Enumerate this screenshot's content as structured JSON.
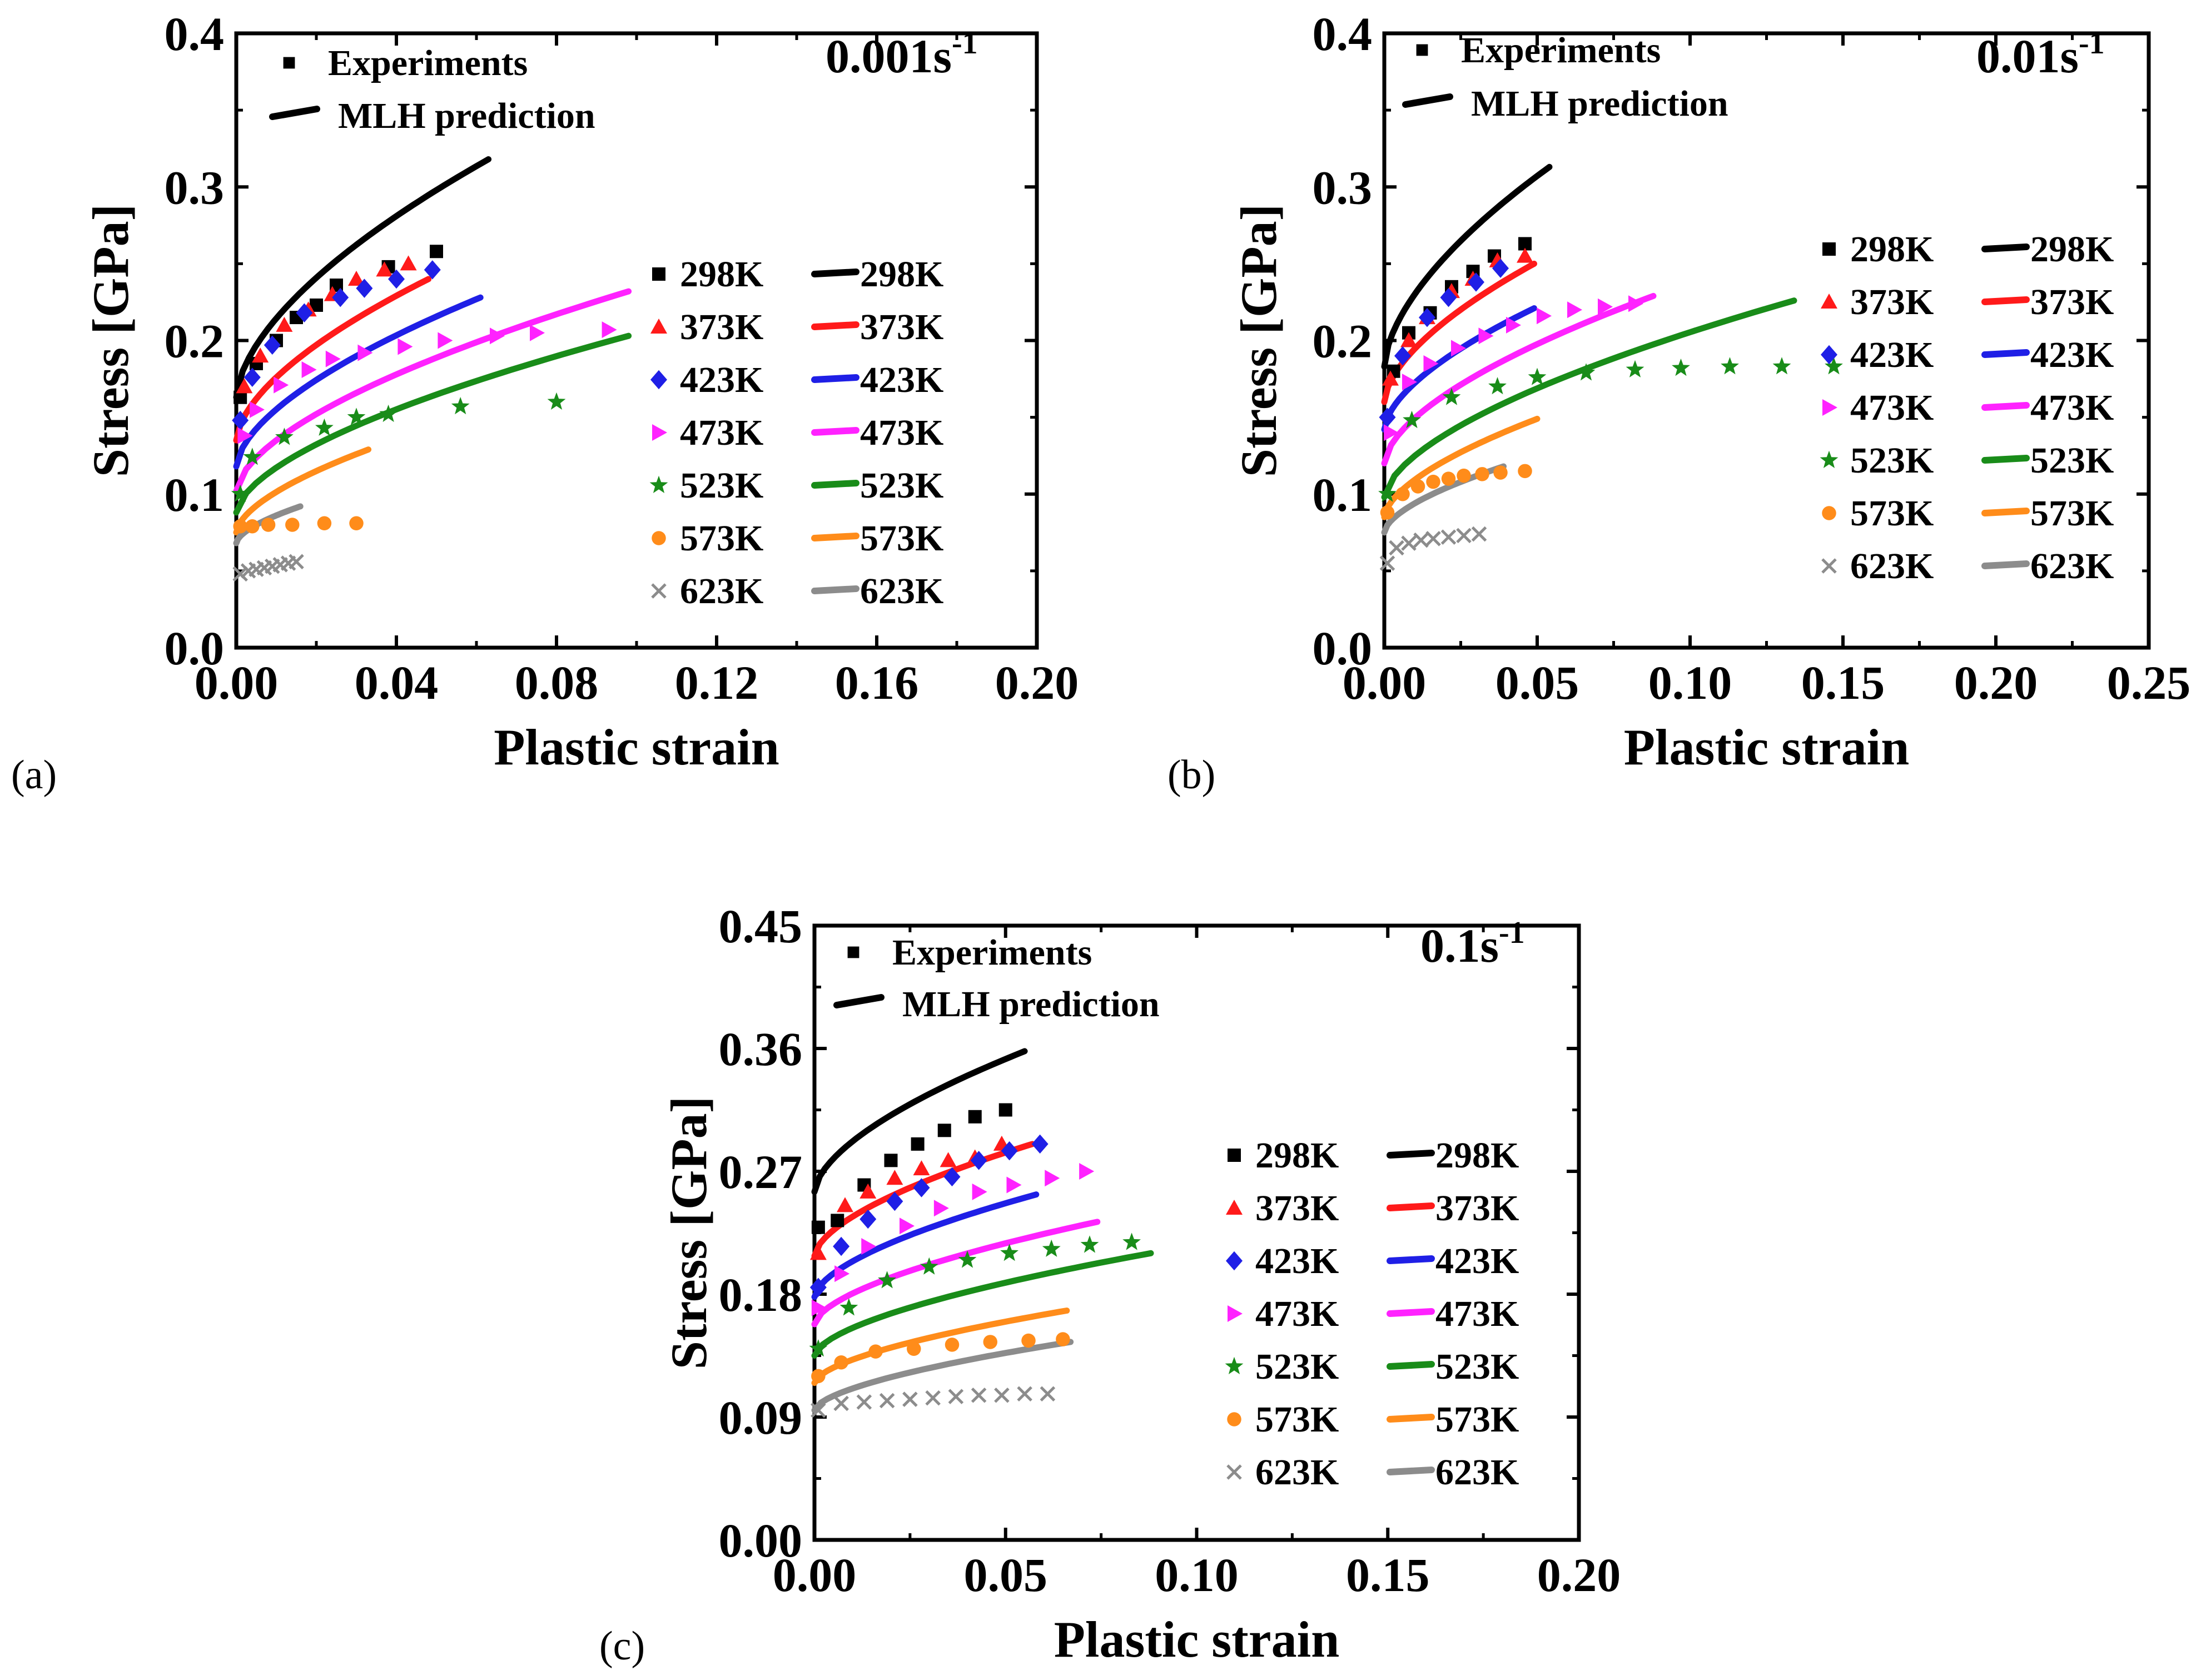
{
  "figure": {
    "legend_header": {
      "experiments": "Experiments",
      "prediction": "MLH prediction"
    },
    "series_styles": [
      {
        "temp": "298K",
        "color": "#000000",
        "marker": "square"
      },
      {
        "temp": "373K",
        "color": "#ff1a1a",
        "marker": "triangle"
      },
      {
        "temp": "423K",
        "color": "#1f1fe6",
        "marker": "diamond"
      },
      {
        "temp": "473K",
        "color": "#ff22ff",
        "marker": "tri-right"
      },
      {
        "temp": "523K",
        "color": "#198c19",
        "marker": "star"
      },
      {
        "temp": "573K",
        "color": "#ff8c1a",
        "marker": "circle"
      },
      {
        "temp": "623K",
        "color": "#8c8c8c",
        "marker": "cross"
      }
    ]
  },
  "chart_data": [
    {
      "type": "scatter",
      "panel_label": "(a)",
      "rate_label": "0.001s",
      "rate_exponent": "-1",
      "xlabel": "Plastic strain",
      "ylabel": "Stress [GPa]",
      "xlim": [
        0,
        0.2
      ],
      "ylim": [
        0,
        0.4
      ],
      "xticks": [
        "0.00",
        "0.04",
        "0.08",
        "0.12",
        "0.16",
        "0.20"
      ],
      "yticks": [
        "0.0",
        "0.1",
        "0.2",
        "0.3",
        "0.4"
      ],
      "experiments": [
        {
          "name": "298K",
          "points": [
            [
              0.001,
              0.163
            ],
            [
              0.005,
              0.185
            ],
            [
              0.01,
              0.2
            ],
            [
              0.015,
              0.215
            ],
            [
              0.02,
              0.223
            ],
            [
              0.025,
              0.236
            ],
            [
              0.038,
              0.248
            ],
            [
              0.05,
              0.258
            ]
          ]
        },
        {
          "name": "373K",
          "points": [
            [
              0.002,
              0.17
            ],
            [
              0.006,
              0.19
            ],
            [
              0.012,
              0.21
            ],
            [
              0.018,
              0.22
            ],
            [
              0.024,
              0.23
            ],
            [
              0.03,
              0.24
            ],
            [
              0.037,
              0.246
            ],
            [
              0.043,
              0.25
            ]
          ]
        },
        {
          "name": "423K",
          "points": [
            [
              0.001,
              0.148
            ],
            [
              0.004,
              0.176
            ],
            [
              0.009,
              0.197
            ],
            [
              0.017,
              0.218
            ],
            [
              0.026,
              0.228
            ],
            [
              0.032,
              0.234
            ],
            [
              0.04,
              0.24
            ],
            [
              0.049,
              0.246
            ]
          ]
        },
        {
          "name": "473K",
          "points": [
            [
              0.002,
              0.138
            ],
            [
              0.005,
              0.155
            ],
            [
              0.011,
              0.171
            ],
            [
              0.018,
              0.181
            ],
            [
              0.024,
              0.188
            ],
            [
              0.032,
              0.192
            ],
            [
              0.042,
              0.196
            ],
            [
              0.052,
              0.2
            ],
            [
              0.065,
              0.203
            ],
            [
              0.075,
              0.205
            ],
            [
              0.093,
              0.207
            ]
          ]
        },
        {
          "name": "523K",
          "points": [
            [
              0.001,
              0.1
            ],
            [
              0.004,
              0.124
            ],
            [
              0.012,
              0.137
            ],
            [
              0.022,
              0.143
            ],
            [
              0.03,
              0.15
            ],
            [
              0.038,
              0.152
            ],
            [
              0.056,
              0.157
            ],
            [
              0.08,
              0.16
            ]
          ]
        },
        {
          "name": "573K",
          "points": [
            [
              0.001,
              0.079
            ],
            [
              0.004,
              0.079
            ],
            [
              0.008,
              0.08
            ],
            [
              0.014,
              0.08
            ],
            [
              0.022,
              0.081
            ],
            [
              0.03,
              0.081
            ]
          ]
        },
        {
          "name": "623K",
          "points": [
            [
              0.001,
              0.048
            ],
            [
              0.003,
              0.05
            ],
            [
              0.005,
              0.051
            ],
            [
              0.007,
              0.052
            ],
            [
              0.009,
              0.053
            ],
            [
              0.011,
              0.054
            ],
            [
              0.013,
              0.055
            ],
            [
              0.015,
              0.056
            ]
          ]
        }
      ],
      "predictions": [
        {
          "name": "298K",
          "y0": 0.163,
          "xmax": 0.063,
          "ymax": 0.318
        },
        {
          "name": "373K",
          "y0": 0.135,
          "xmax": 0.048,
          "ymax": 0.24
        },
        {
          "name": "423K",
          "y0": 0.118,
          "xmax": 0.061,
          "ymax": 0.228
        },
        {
          "name": "473K",
          "y0": 0.102,
          "xmax": 0.098,
          "ymax": 0.232
        },
        {
          "name": "523K",
          "y0": 0.088,
          "xmax": 0.098,
          "ymax": 0.203
        },
        {
          "name": "573K",
          "y0": 0.075,
          "xmax": 0.033,
          "ymax": 0.129
        },
        {
          "name": "623K",
          "y0": 0.068,
          "xmax": 0.016,
          "ymax": 0.092
        }
      ]
    },
    {
      "type": "scatter",
      "panel_label": "(b)",
      "rate_label": "0.01s",
      "rate_exponent": "-1",
      "xlabel": "Plastic strain",
      "ylabel": "Stress [GPa]",
      "xlim": [
        0,
        0.25
      ],
      "ylim": [
        0,
        0.4
      ],
      "xticks": [
        "0.00",
        "0.05",
        "0.10",
        "0.15",
        "0.20",
        "0.25"
      ],
      "yticks": [
        "0.0",
        "0.1",
        "0.2",
        "0.3",
        "0.4"
      ],
      "experiments": [
        {
          "name": "298K",
          "points": [
            [
              0.003,
              0.18
            ],
            [
              0.008,
              0.205
            ],
            [
              0.015,
              0.218
            ],
            [
              0.022,
              0.235
            ],
            [
              0.029,
              0.245
            ],
            [
              0.036,
              0.255
            ],
            [
              0.046,
              0.263
            ]
          ]
        },
        {
          "name": "373K",
          "points": [
            [
              0.002,
              0.175
            ],
            [
              0.008,
              0.2
            ],
            [
              0.014,
              0.215
            ],
            [
              0.022,
              0.232
            ],
            [
              0.029,
              0.24
            ],
            [
              0.037,
              0.252
            ],
            [
              0.046,
              0.255
            ]
          ]
        },
        {
          "name": "423K",
          "points": [
            [
              0.001,
              0.15
            ],
            [
              0.006,
              0.19
            ],
            [
              0.014,
              0.215
            ],
            [
              0.021,
              0.228
            ],
            [
              0.03,
              0.238
            ],
            [
              0.038,
              0.247
            ]
          ]
        },
        {
          "name": "473K",
          "points": [
            [
              0.002,
              0.14
            ],
            [
              0.008,
              0.173
            ],
            [
              0.015,
              0.185
            ],
            [
              0.024,
              0.195
            ],
            [
              0.033,
              0.203
            ],
            [
              0.042,
              0.21
            ],
            [
              0.052,
              0.216
            ],
            [
              0.062,
              0.22
            ],
            [
              0.072,
              0.222
            ],
            [
              0.082,
              0.224
            ]
          ]
        },
        {
          "name": "523K",
          "points": [
            [
              0.001,
              0.1
            ],
            [
              0.009,
              0.148
            ],
            [
              0.022,
              0.163
            ],
            [
              0.037,
              0.17
            ],
            [
              0.05,
              0.176
            ],
            [
              0.066,
              0.179
            ],
            [
              0.082,
              0.181
            ],
            [
              0.097,
              0.182
            ],
            [
              0.113,
              0.183
            ],
            [
              0.13,
              0.183
            ],
            [
              0.147,
              0.183
            ]
          ]
        },
        {
          "name": "573K",
          "points": [
            [
              0.001,
              0.088
            ],
            [
              0.006,
              0.1
            ],
            [
              0.011,
              0.105
            ],
            [
              0.016,
              0.108
            ],
            [
              0.021,
              0.11
            ],
            [
              0.026,
              0.112
            ],
            [
              0.032,
              0.113
            ],
            [
              0.038,
              0.114
            ],
            [
              0.046,
              0.115
            ]
          ]
        },
        {
          "name": "623K",
          "points": [
            [
              0.001,
              0.055
            ],
            [
              0.004,
              0.065
            ],
            [
              0.008,
              0.068
            ],
            [
              0.012,
              0.07
            ],
            [
              0.016,
              0.071
            ],
            [
              0.021,
              0.072
            ],
            [
              0.026,
              0.073
            ],
            [
              0.031,
              0.074
            ]
          ]
        }
      ],
      "predictions": [
        {
          "name": "298K",
          "y0": 0.183,
          "xmax": 0.054,
          "ymax": 0.313
        },
        {
          "name": "373K",
          "y0": 0.16,
          "xmax": 0.049,
          "ymax": 0.25
        },
        {
          "name": "423K",
          "y0": 0.142,
          "xmax": 0.049,
          "ymax": 0.221
        },
        {
          "name": "473K",
          "y0": 0.12,
          "xmax": 0.088,
          "ymax": 0.229
        },
        {
          "name": "523K",
          "y0": 0.098,
          "xmax": 0.134,
          "ymax": 0.226
        },
        {
          "name": "573K",
          "y0": 0.085,
          "xmax": 0.05,
          "ymax": 0.149
        },
        {
          "name": "623K",
          "y0": 0.075,
          "xmax": 0.039,
          "ymax": 0.118
        }
      ]
    },
    {
      "type": "scatter",
      "panel_label": "(c)",
      "rate_label": "0.1s",
      "rate_exponent": "-1",
      "xlabel": "Plastic strain",
      "ylabel": "Stress [GPa]",
      "xlim": [
        0,
        0.2
      ],
      "ylim": [
        0,
        0.45
      ],
      "xticks": [
        "0.00",
        "0.05",
        "0.10",
        "0.15",
        "0.20"
      ],
      "yticks": [
        "0.00",
        "0.09",
        "0.18",
        "0.27",
        "0.36",
        "0.45"
      ],
      "experiments": [
        {
          "name": "298K",
          "points": [
            [
              0.001,
              0.229
            ],
            [
              0.006,
              0.234
            ],
            [
              0.013,
              0.26
            ],
            [
              0.02,
              0.278
            ],
            [
              0.027,
              0.29
            ],
            [
              0.034,
              0.3
            ],
            [
              0.042,
              0.31
            ],
            [
              0.05,
              0.315
            ]
          ]
        },
        {
          "name": "373K",
          "points": [
            [
              0.001,
              0.21
            ],
            [
              0.008,
              0.245
            ],
            [
              0.014,
              0.255
            ],
            [
              0.021,
              0.265
            ],
            [
              0.028,
              0.272
            ],
            [
              0.035,
              0.278
            ],
            [
              0.042,
              0.28
            ],
            [
              0.049,
              0.29
            ]
          ]
        },
        {
          "name": "423K",
          "points": [
            [
              0.001,
              0.185
            ],
            [
              0.007,
              0.215
            ],
            [
              0.014,
              0.235
            ],
            [
              0.021,
              0.248
            ],
            [
              0.028,
              0.258
            ],
            [
              0.036,
              0.266
            ],
            [
              0.043,
              0.278
            ],
            [
              0.051,
              0.285
            ],
            [
              0.059,
              0.29
            ]
          ]
        },
        {
          "name": "473K",
          "points": [
            [
              0.001,
              0.17
            ],
            [
              0.007,
              0.195
            ],
            [
              0.014,
              0.215
            ],
            [
              0.024,
              0.23
            ],
            [
              0.033,
              0.243
            ],
            [
              0.043,
              0.255
            ],
            [
              0.052,
              0.26
            ],
            [
              0.062,
              0.265
            ],
            [
              0.071,
              0.27
            ]
          ]
        },
        {
          "name": "523K",
          "points": [
            [
              0.001,
              0.14
            ],
            [
              0.009,
              0.17
            ],
            [
              0.019,
              0.19
            ],
            [
              0.03,
              0.2
            ],
            [
              0.04,
              0.205
            ],
            [
              0.051,
              0.21
            ],
            [
              0.062,
              0.213
            ],
            [
              0.072,
              0.216
            ],
            [
              0.083,
              0.218
            ]
          ]
        },
        {
          "name": "573K",
          "points": [
            [
              0.001,
              0.12
            ],
            [
              0.007,
              0.13
            ],
            [
              0.016,
              0.138
            ],
            [
              0.026,
              0.14
            ],
            [
              0.036,
              0.143
            ],
            [
              0.046,
              0.145
            ],
            [
              0.056,
              0.146
            ],
            [
              0.065,
              0.147
            ]
          ]
        },
        {
          "name": "623K",
          "points": [
            [
              0.001,
              0.095
            ],
            [
              0.007,
              0.1
            ],
            [
              0.013,
              0.101
            ],
            [
              0.019,
              0.102
            ],
            [
              0.025,
              0.103
            ],
            [
              0.031,
              0.104
            ],
            [
              0.037,
              0.105
            ],
            [
              0.043,
              0.106
            ],
            [
              0.049,
              0.106
            ],
            [
              0.055,
              0.107
            ],
            [
              0.061,
              0.107
            ]
          ]
        }
      ],
      "predictions": [
        {
          "name": "298K",
          "y0": 0.255,
          "xmax": 0.055,
          "ymax": 0.358
        },
        {
          "name": "373K",
          "y0": 0.208,
          "xmax": 0.057,
          "ymax": 0.29
        },
        {
          "name": "423K",
          "y0": 0.178,
          "xmax": 0.058,
          "ymax": 0.253
        },
        {
          "name": "473K",
          "y0": 0.158,
          "xmax": 0.074,
          "ymax": 0.233
        },
        {
          "name": "523K",
          "y0": 0.135,
          "xmax": 0.088,
          "ymax": 0.21
        },
        {
          "name": "573K",
          "y0": 0.115,
          "xmax": 0.066,
          "ymax": 0.168
        },
        {
          "name": "623K",
          "y0": 0.095,
          "xmax": 0.067,
          "ymax": 0.145
        }
      ]
    }
  ]
}
